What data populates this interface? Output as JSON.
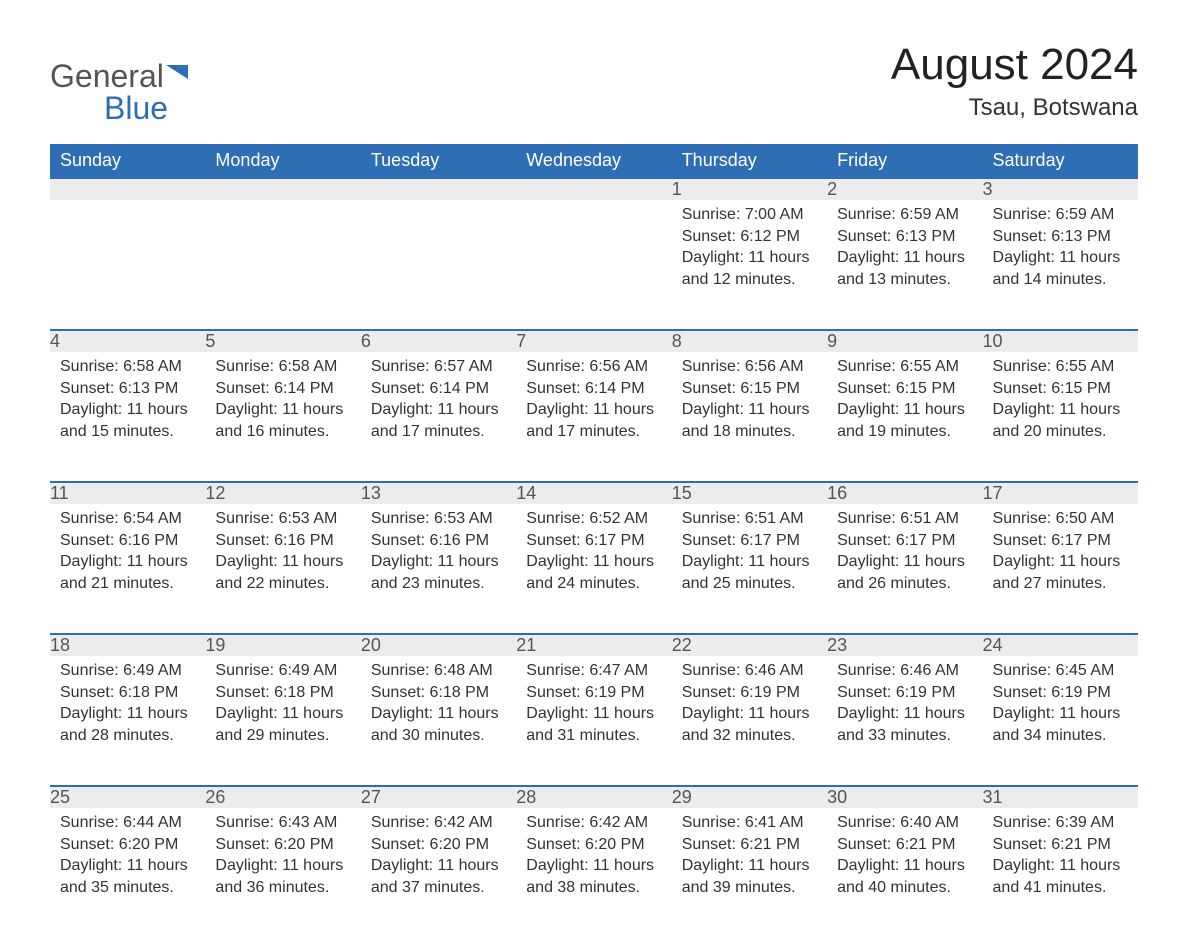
{
  "brand": {
    "part1": "General",
    "part2": "Blue"
  },
  "title": "August 2024",
  "location": "Tsau, Botswana",
  "colors": {
    "header_bg": "#2d6eb5",
    "header_text": "#ffffff",
    "daynum_bg": "#ececec",
    "border_top": "#2d6eb5",
    "body_text": "#333333",
    "logo_gray": "#555555",
    "logo_blue": "#2d6eb5",
    "page_bg": "#ffffff"
  },
  "typography": {
    "title_fontsize": 44,
    "location_fontsize": 24,
    "th_fontsize": 18,
    "daynum_fontsize": 18,
    "data_fontsize": 16,
    "logo_fontsize": 32
  },
  "weekdays": [
    "Sunday",
    "Monday",
    "Tuesday",
    "Wednesday",
    "Thursday",
    "Friday",
    "Saturday"
  ],
  "weeks": [
    [
      null,
      null,
      null,
      null,
      {
        "d": "1",
        "sunrise": "Sunrise: 7:00 AM",
        "sunset": "Sunset: 6:12 PM",
        "daylight": "Daylight: 11 hours and 12 minutes."
      },
      {
        "d": "2",
        "sunrise": "Sunrise: 6:59 AM",
        "sunset": "Sunset: 6:13 PM",
        "daylight": "Daylight: 11 hours and 13 minutes."
      },
      {
        "d": "3",
        "sunrise": "Sunrise: 6:59 AM",
        "sunset": "Sunset: 6:13 PM",
        "daylight": "Daylight: 11 hours and 14 minutes."
      }
    ],
    [
      {
        "d": "4",
        "sunrise": "Sunrise: 6:58 AM",
        "sunset": "Sunset: 6:13 PM",
        "daylight": "Daylight: 11 hours and 15 minutes."
      },
      {
        "d": "5",
        "sunrise": "Sunrise: 6:58 AM",
        "sunset": "Sunset: 6:14 PM",
        "daylight": "Daylight: 11 hours and 16 minutes."
      },
      {
        "d": "6",
        "sunrise": "Sunrise: 6:57 AM",
        "sunset": "Sunset: 6:14 PM",
        "daylight": "Daylight: 11 hours and 17 minutes."
      },
      {
        "d": "7",
        "sunrise": "Sunrise: 6:56 AM",
        "sunset": "Sunset: 6:14 PM",
        "daylight": "Daylight: 11 hours and 17 minutes."
      },
      {
        "d": "8",
        "sunrise": "Sunrise: 6:56 AM",
        "sunset": "Sunset: 6:15 PM",
        "daylight": "Daylight: 11 hours and 18 minutes."
      },
      {
        "d": "9",
        "sunrise": "Sunrise: 6:55 AM",
        "sunset": "Sunset: 6:15 PM",
        "daylight": "Daylight: 11 hours and 19 minutes."
      },
      {
        "d": "10",
        "sunrise": "Sunrise: 6:55 AM",
        "sunset": "Sunset: 6:15 PM",
        "daylight": "Daylight: 11 hours and 20 minutes."
      }
    ],
    [
      {
        "d": "11",
        "sunrise": "Sunrise: 6:54 AM",
        "sunset": "Sunset: 6:16 PM",
        "daylight": "Daylight: 11 hours and 21 minutes."
      },
      {
        "d": "12",
        "sunrise": "Sunrise: 6:53 AM",
        "sunset": "Sunset: 6:16 PM",
        "daylight": "Daylight: 11 hours and 22 minutes."
      },
      {
        "d": "13",
        "sunrise": "Sunrise: 6:53 AM",
        "sunset": "Sunset: 6:16 PM",
        "daylight": "Daylight: 11 hours and 23 minutes."
      },
      {
        "d": "14",
        "sunrise": "Sunrise: 6:52 AM",
        "sunset": "Sunset: 6:17 PM",
        "daylight": "Daylight: 11 hours and 24 minutes."
      },
      {
        "d": "15",
        "sunrise": "Sunrise: 6:51 AM",
        "sunset": "Sunset: 6:17 PM",
        "daylight": "Daylight: 11 hours and 25 minutes."
      },
      {
        "d": "16",
        "sunrise": "Sunrise: 6:51 AM",
        "sunset": "Sunset: 6:17 PM",
        "daylight": "Daylight: 11 hours and 26 minutes."
      },
      {
        "d": "17",
        "sunrise": "Sunrise: 6:50 AM",
        "sunset": "Sunset: 6:17 PM",
        "daylight": "Daylight: 11 hours and 27 minutes."
      }
    ],
    [
      {
        "d": "18",
        "sunrise": "Sunrise: 6:49 AM",
        "sunset": "Sunset: 6:18 PM",
        "daylight": "Daylight: 11 hours and 28 minutes."
      },
      {
        "d": "19",
        "sunrise": "Sunrise: 6:49 AM",
        "sunset": "Sunset: 6:18 PM",
        "daylight": "Daylight: 11 hours and 29 minutes."
      },
      {
        "d": "20",
        "sunrise": "Sunrise: 6:48 AM",
        "sunset": "Sunset: 6:18 PM",
        "daylight": "Daylight: 11 hours and 30 minutes."
      },
      {
        "d": "21",
        "sunrise": "Sunrise: 6:47 AM",
        "sunset": "Sunset: 6:19 PM",
        "daylight": "Daylight: 11 hours and 31 minutes."
      },
      {
        "d": "22",
        "sunrise": "Sunrise: 6:46 AM",
        "sunset": "Sunset: 6:19 PM",
        "daylight": "Daylight: 11 hours and 32 minutes."
      },
      {
        "d": "23",
        "sunrise": "Sunrise: 6:46 AM",
        "sunset": "Sunset: 6:19 PM",
        "daylight": "Daylight: 11 hours and 33 minutes."
      },
      {
        "d": "24",
        "sunrise": "Sunrise: 6:45 AM",
        "sunset": "Sunset: 6:19 PM",
        "daylight": "Daylight: 11 hours and 34 minutes."
      }
    ],
    [
      {
        "d": "25",
        "sunrise": "Sunrise: 6:44 AM",
        "sunset": "Sunset: 6:20 PM",
        "daylight": "Daylight: 11 hours and 35 minutes."
      },
      {
        "d": "26",
        "sunrise": "Sunrise: 6:43 AM",
        "sunset": "Sunset: 6:20 PM",
        "daylight": "Daylight: 11 hours and 36 minutes."
      },
      {
        "d": "27",
        "sunrise": "Sunrise: 6:42 AM",
        "sunset": "Sunset: 6:20 PM",
        "daylight": "Daylight: 11 hours and 37 minutes."
      },
      {
        "d": "28",
        "sunrise": "Sunrise: 6:42 AM",
        "sunset": "Sunset: 6:20 PM",
        "daylight": "Daylight: 11 hours and 38 minutes."
      },
      {
        "d": "29",
        "sunrise": "Sunrise: 6:41 AM",
        "sunset": "Sunset: 6:21 PM",
        "daylight": "Daylight: 11 hours and 39 minutes."
      },
      {
        "d": "30",
        "sunrise": "Sunrise: 6:40 AM",
        "sunset": "Sunset: 6:21 PM",
        "daylight": "Daylight: 11 hours and 40 minutes."
      },
      {
        "d": "31",
        "sunrise": "Sunrise: 6:39 AM",
        "sunset": "Sunset: 6:21 PM",
        "daylight": "Daylight: 11 hours and 41 minutes."
      }
    ]
  ]
}
